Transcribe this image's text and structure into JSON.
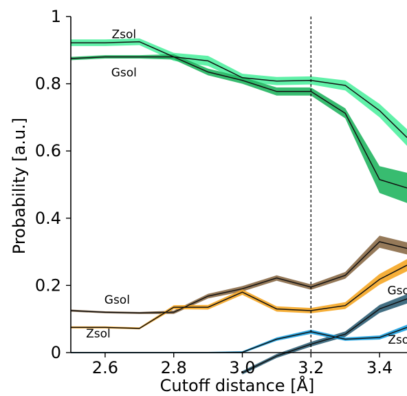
{
  "chart_data": {
    "type": "line",
    "xlabel": "Cutoff distance [Å]",
    "ylabel": "Probability [a.u.]",
    "xlim": [
      2.5,
      3.48
    ],
    "ylim": [
      0,
      1
    ],
    "x_ticks": [
      "2.6",
      "2.8",
      "3.0",
      "3.2",
      "3.4"
    ],
    "x_tick_values": [
      2.6,
      2.8,
      3.0,
      3.2,
      3.4
    ],
    "y_ticks": [
      "0",
      "0.2",
      "0.4",
      "0.6",
      "0.8",
      "1"
    ],
    "y_tick_values": [
      0,
      0.2,
      0.4,
      0.6,
      0.8,
      1.0
    ],
    "vline": 3.2,
    "grid": false,
    "x": [
      2.5,
      2.6,
      2.7,
      2.8,
      2.9,
      3.0,
      3.1,
      3.2,
      3.3,
      3.4,
      3.48
    ],
    "series": [
      {
        "color": "#50f0a0",
        "values": [
          0.922,
          0.922,
          0.925,
          0.88,
          0.868,
          0.818,
          0.808,
          0.81,
          0.795,
          0.72,
          0.64
        ],
        "band": [
          0.01,
          0.01,
          0.01,
          0.012,
          0.015,
          0.012,
          0.012,
          0.012,
          0.015,
          0.02,
          0.025
        ]
      },
      {
        "color": "#22b560",
        "values": [
          0.875,
          0.88,
          0.88,
          0.88,
          0.835,
          0.81,
          0.777,
          0.777,
          0.712,
          0.515,
          0.49
        ],
        "band": [
          0.005,
          0.005,
          0.005,
          0.008,
          0.01,
          0.01,
          0.012,
          0.012,
          0.015,
          0.04,
          0.045
        ]
      },
      {
        "color": "#8a6a47",
        "values": [
          0.125,
          0.12,
          0.118,
          0.12,
          0.168,
          0.19,
          0.222,
          0.195,
          0.23,
          0.33,
          0.31
        ],
        "band": [
          0.003,
          0.003,
          0.003,
          0.005,
          0.007,
          0.008,
          0.008,
          0.008,
          0.01,
          0.018,
          0.018
        ]
      },
      {
        "color": "#f5a623",
        "values": [
          0.075,
          0.075,
          0.072,
          0.135,
          0.135,
          0.18,
          0.13,
          0.125,
          0.14,
          0.218,
          0.26
        ],
        "band": [
          0.003,
          0.003,
          0.003,
          0.006,
          0.007,
          0.008,
          0.008,
          0.008,
          0.01,
          0.016,
          0.018
        ]
      },
      {
        "color": "#2f5f75",
        "values": [
          null,
          null,
          null,
          null,
          null,
          -0.06,
          -0.01,
          0.025,
          0.055,
          0.13,
          0.16
        ],
        "band": [
          0,
          0,
          0,
          0,
          0,
          0.005,
          0.006,
          0.007,
          0.008,
          0.012,
          0.014
        ]
      },
      {
        "color": "#1aa0e0",
        "values": [
          0,
          0,
          0,
          0,
          0,
          0.001,
          0.04,
          0.062,
          0.04,
          0.045,
          0.075
        ],
        "band": [
          0.002,
          0.002,
          0.002,
          0.002,
          0.002,
          0.003,
          0.005,
          0.006,
          0.005,
          0.006,
          0.008
        ]
      }
    ],
    "annotations": [
      {
        "text": "Zsol",
        "x": 2.655,
        "y": 0.935
      },
      {
        "text": "Gsol",
        "x": 2.655,
        "y": 0.822
      },
      {
        "text": "Gsol",
        "x": 2.635,
        "y": 0.145
      },
      {
        "text": "Zsol",
        "x": 2.58,
        "y": 0.045
      },
      {
        "text": "Gsol",
        "x": 3.46,
        "y": 0.173
      },
      {
        "text": "Zsol",
        "x": 3.46,
        "y": 0.027
      }
    ]
  }
}
